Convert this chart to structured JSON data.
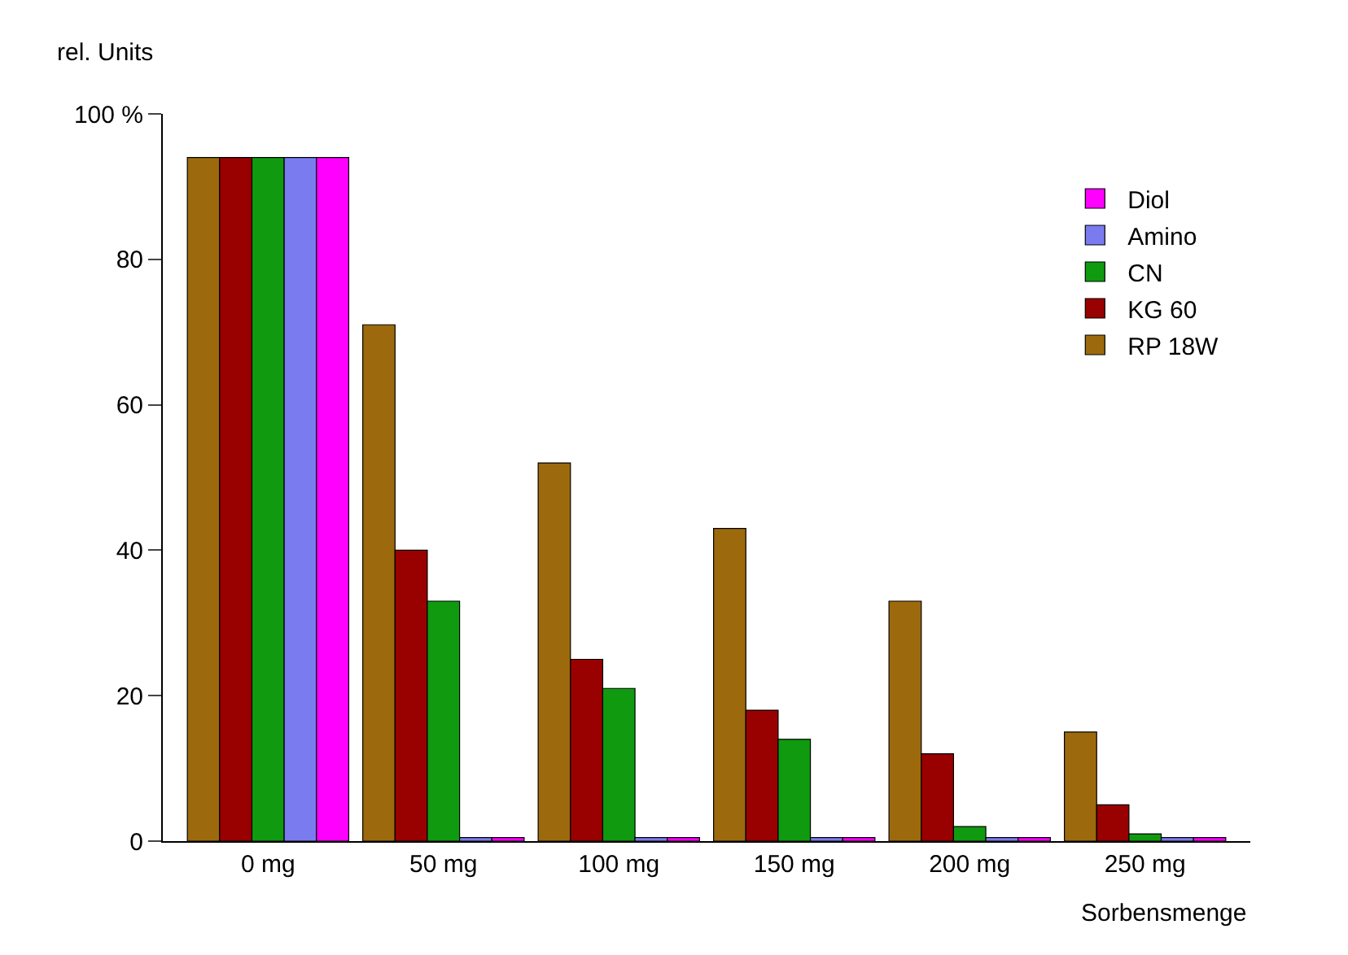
{
  "chart_data": {
    "type": "bar",
    "ylabel": "rel. Units",
    "xlabel": "Sorbensmenge",
    "categories": [
      "0 mg",
      "50 mg",
      "100 mg",
      "150 mg",
      "200 mg",
      "250 mg"
    ],
    "series": [
      {
        "name": "RP 18W",
        "color": "#9c6a0c",
        "values": [
          94,
          71,
          52,
          43,
          33,
          15
        ]
      },
      {
        "name": "KG 60",
        "color": "#990000",
        "values": [
          94,
          40,
          25,
          18,
          12,
          5
        ]
      },
      {
        "name": "CN",
        "color": "#109a10",
        "values": [
          94,
          33,
          21,
          14,
          2,
          1
        ]
      },
      {
        "name": "Amino",
        "color": "#7b7bf0",
        "values": [
          94,
          0.5,
          0.5,
          0.5,
          0.5,
          0.5
        ]
      },
      {
        "name": "Diol",
        "color": "#ff00ff",
        "values": [
          94,
          0.5,
          0.5,
          0.5,
          0.5,
          0.5
        ]
      }
    ],
    "ylim": [
      0,
      100
    ],
    "yticks": [
      0,
      20,
      40,
      60,
      80,
      {
        "value": 100,
        "label": "100 %"
      }
    ],
    "legend": "top right"
  }
}
